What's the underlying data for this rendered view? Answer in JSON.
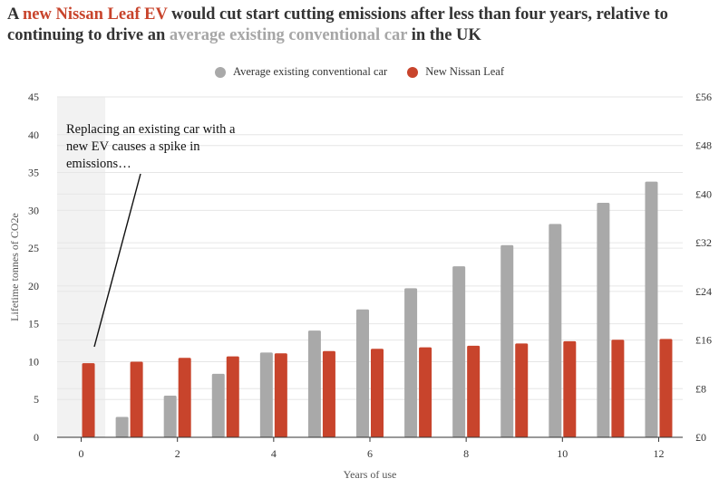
{
  "title": {
    "part1": "A ",
    "highlight_ev": "new Nissan Leaf EV",
    "part2": " would cut start cutting emissions after less than four years, relative to continuing to drive an ",
    "highlight_gas": "average existing conventional car",
    "part3": " in the UK"
  },
  "colors": {
    "conventional": "#a9a9a9",
    "ev": "#c8442c",
    "shade": "#f2f2f2",
    "grid": "#e6e6e6"
  },
  "annotation": "Replacing an existing car with a new EV causes a spike in emissions…",
  "chart_data": {
    "type": "bar",
    "title": "",
    "xlabel": "Years of use",
    "ylabel": "Lifetime tonnes of CO2e",
    "xlim": [
      -0.5,
      12.5
    ],
    "ylim": [
      0,
      45
    ],
    "x_ticks": [
      0,
      2,
      4,
      6,
      8,
      10,
      12
    ],
    "y_ticks": [
      0,
      5,
      10,
      15,
      20,
      25,
      30,
      35,
      40,
      45
    ],
    "y2_ticks": [
      "£0",
      "£8",
      "£16",
      "£24",
      "£32",
      "£40",
      "£48",
      "£56"
    ],
    "y2lim": [
      0,
      56
    ],
    "grid": true,
    "legend_position": "top-center",
    "shaded_region": [
      -0.5,
      0.5
    ],
    "x": [
      0,
      1,
      2,
      3,
      4,
      5,
      6,
      7,
      8,
      9,
      10,
      11,
      12
    ],
    "series": [
      {
        "name": "Average existing conventional car",
        "values": [
          0,
          2.7,
          5.5,
          8.4,
          11.2,
          14.1,
          16.9,
          19.7,
          22.6,
          25.4,
          28.2,
          31.0,
          33.8
        ]
      },
      {
        "name": "New Nissan Leaf",
        "values": [
          9.8,
          10.0,
          10.5,
          10.7,
          11.1,
          11.4,
          11.7,
          11.9,
          12.1,
          12.4,
          12.7,
          12.9,
          13.0
        ]
      }
    ]
  }
}
